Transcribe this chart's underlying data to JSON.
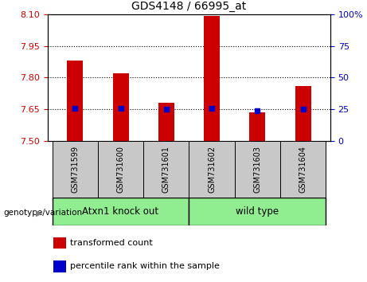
{
  "title": "GDS4148 / 66995_at",
  "samples": [
    "GSM731599",
    "GSM731600",
    "GSM731601",
    "GSM731602",
    "GSM731603",
    "GSM731604"
  ],
  "red_values": [
    7.88,
    7.82,
    7.68,
    8.09,
    7.635,
    7.76
  ],
  "blue_values": [
    7.655,
    7.653,
    7.65,
    7.655,
    7.643,
    7.65
  ],
  "ylim_left": [
    7.5,
    8.1
  ],
  "ylim_right": [
    0,
    100
  ],
  "yticks_left": [
    7.5,
    7.65,
    7.8,
    7.95,
    8.1
  ],
  "yticks_right": [
    0,
    25,
    50,
    75,
    100
  ],
  "hlines": [
    7.95,
    7.8,
    7.65
  ],
  "bar_color": "#CC0000",
  "dot_color": "#0000CC",
  "bar_width": 0.35,
  "baseline": 7.5,
  "group_label": "genotype/variation",
  "group1_label": "Atxn1 knock out",
  "group2_label": "wild type",
  "group_color": "#90EE90",
  "legend_items": [
    {
      "color": "#CC0000",
      "label": "transformed count"
    },
    {
      "color": "#0000CC",
      "label": "percentile rank within the sample"
    }
  ],
  "tick_color_left": "#CC0000",
  "tick_color_right": "#0000CC",
  "xlabel_bg": "#C8C8C8"
}
